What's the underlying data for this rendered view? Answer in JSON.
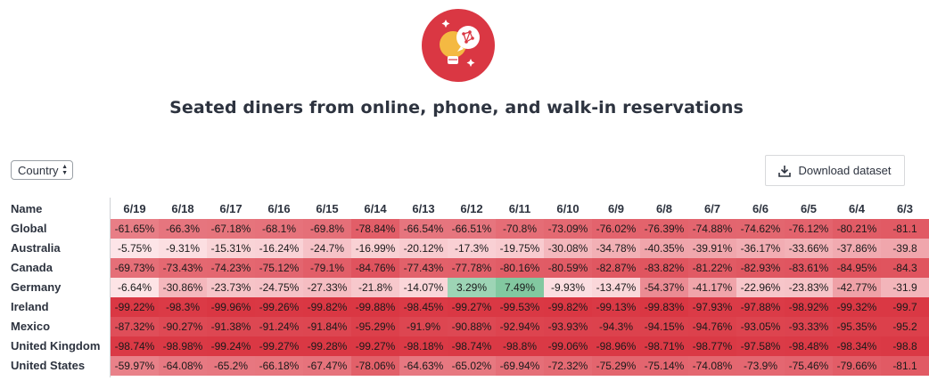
{
  "title": "Seated diners from online, phone, and walk-in reservations",
  "logo_icon": "lightbulb-network-icon",
  "colors": {
    "brand": "#da3743",
    "positive": "#9ed1b0"
  },
  "controls": {
    "select_value": "Country",
    "download_label": "Download dataset"
  },
  "table": {
    "name_header": "Name",
    "dates": [
      "6/19",
      "6/18",
      "6/17",
      "6/16",
      "6/15",
      "6/14",
      "6/13",
      "6/12",
      "6/11",
      "6/10",
      "6/9",
      "6/8",
      "6/7",
      "6/6",
      "6/5",
      "6/4",
      "6/3"
    ],
    "rows": [
      {
        "name": "Global",
        "values": [
          "-61.65%",
          "-66.3%",
          "-67.18%",
          "-68.1%",
          "-69.8%",
          "-78.84%",
          "-66.54%",
          "-66.51%",
          "-70.8%",
          "-73.09%",
          "-76.02%",
          "-76.39%",
          "-74.88%",
          "-74.62%",
          "-76.12%",
          "-80.21%",
          "-81.1"
        ]
      },
      {
        "name": "Australia",
        "values": [
          "-5.75%",
          "-9.31%",
          "-15.31%",
          "-16.24%",
          "-24.7%",
          "-16.99%",
          "-20.12%",
          "-17.3%",
          "-19.75%",
          "-30.08%",
          "-34.78%",
          "-40.35%",
          "-39.91%",
          "-36.17%",
          "-33.66%",
          "-37.86%",
          "-39.8"
        ]
      },
      {
        "name": "Canada",
        "values": [
          "-69.73%",
          "-73.43%",
          "-74.23%",
          "-75.12%",
          "-79.1%",
          "-84.76%",
          "-77.43%",
          "-77.78%",
          "-80.16%",
          "-80.59%",
          "-82.87%",
          "-83.82%",
          "-81.22%",
          "-82.93%",
          "-83.61%",
          "-84.95%",
          "-84.3"
        ]
      },
      {
        "name": "Germany",
        "values": [
          "-6.64%",
          "-30.86%",
          "-23.73%",
          "-24.75%",
          "-27.33%",
          "-21.8%",
          "-14.07%",
          "3.29%",
          "7.49%",
          "-9.93%",
          "-13.47%",
          "-54.37%",
          "-41.17%",
          "-22.96%",
          "-23.83%",
          "-42.77%",
          "-31.9"
        ]
      },
      {
        "name": "Ireland",
        "values": [
          "-99.22%",
          "-98.3%",
          "-99.96%",
          "-99.26%",
          "-99.82%",
          "-99.88%",
          "-98.45%",
          "-99.27%",
          "-99.53%",
          "-99.82%",
          "-99.13%",
          "-99.83%",
          "-97.93%",
          "-97.88%",
          "-98.92%",
          "-99.32%",
          "-99.7"
        ]
      },
      {
        "name": "Mexico",
        "values": [
          "-87.32%",
          "-90.27%",
          "-91.38%",
          "-91.24%",
          "-91.84%",
          "-95.29%",
          "-91.9%",
          "-90.88%",
          "-92.94%",
          "-93.93%",
          "-94.3%",
          "-94.15%",
          "-94.76%",
          "-93.05%",
          "-93.33%",
          "-95.35%",
          "-95.2"
        ]
      },
      {
        "name": "United Kingdom",
        "values": [
          "-98.74%",
          "-98.98%",
          "-99.24%",
          "-99.27%",
          "-99.28%",
          "-99.27%",
          "-98.18%",
          "-98.74%",
          "-98.8%",
          "-99.06%",
          "-98.96%",
          "-98.71%",
          "-98.77%",
          "-97.58%",
          "-98.48%",
          "-98.34%",
          "-98.8"
        ]
      },
      {
        "name": "United States",
        "values": [
          "-59.97%",
          "-64.08%",
          "-65.2%",
          "-66.18%",
          "-67.47%",
          "-78.06%",
          "-64.63%",
          "-65.02%",
          "-69.94%",
          "-72.32%",
          "-75.29%",
          "-75.14%",
          "-74.08%",
          "-73.9%",
          "-75.46%",
          "-79.66%",
          "-81.1"
        ]
      }
    ]
  }
}
